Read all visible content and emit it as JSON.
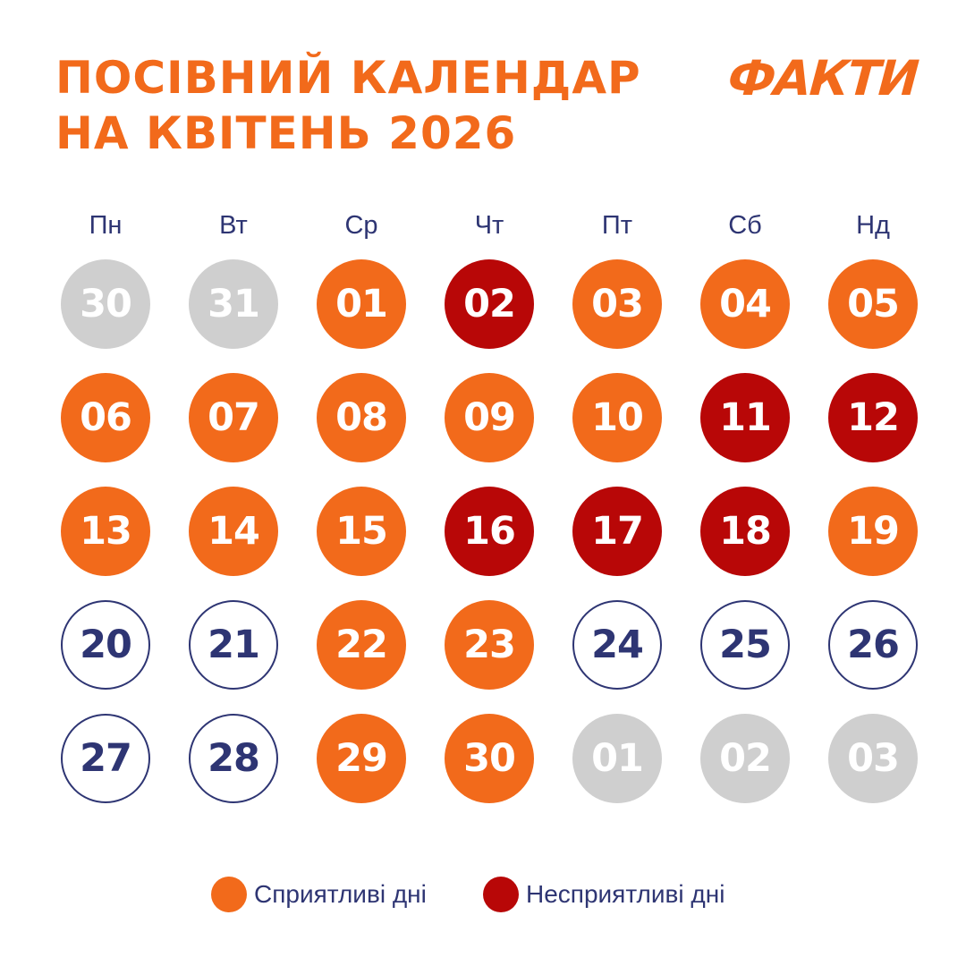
{
  "header": {
    "title_line1": "ПОСІВНИЙ КАЛЕНДАР",
    "title_line2": "НА КВІТЕНЬ 2026",
    "logo": "ФАКТИ"
  },
  "colors": {
    "good": "#F26A1B",
    "bad": "#B80707",
    "neutral_text": "#2E3573",
    "other_month": "#CFCFCF"
  },
  "weekdays": [
    "Пн",
    "Вт",
    "Ср",
    "Чт",
    "Пт",
    "Сб",
    "Нд"
  ],
  "calendar": [
    [
      {
        "label": "30",
        "status": "other"
      },
      {
        "label": "31",
        "status": "other"
      },
      {
        "label": "01",
        "status": "good"
      },
      {
        "label": "02",
        "status": "bad"
      },
      {
        "label": "03",
        "status": "good"
      },
      {
        "label": "04",
        "status": "good"
      },
      {
        "label": "05",
        "status": "good"
      }
    ],
    [
      {
        "label": "06",
        "status": "good"
      },
      {
        "label": "07",
        "status": "good"
      },
      {
        "label": "08",
        "status": "good"
      },
      {
        "label": "09",
        "status": "good"
      },
      {
        "label": "10",
        "status": "good"
      },
      {
        "label": "11",
        "status": "bad"
      },
      {
        "label": "12",
        "status": "bad"
      }
    ],
    [
      {
        "label": "13",
        "status": "good"
      },
      {
        "label": "14",
        "status": "good"
      },
      {
        "label": "15",
        "status": "good"
      },
      {
        "label": "16",
        "status": "bad"
      },
      {
        "label": "17",
        "status": "bad"
      },
      {
        "label": "18",
        "status": "bad"
      },
      {
        "label": "19",
        "status": "good"
      }
    ],
    [
      {
        "label": "20",
        "status": "neutral"
      },
      {
        "label": "21",
        "status": "neutral"
      },
      {
        "label": "22",
        "status": "good"
      },
      {
        "label": "23",
        "status": "good"
      },
      {
        "label": "24",
        "status": "neutral"
      },
      {
        "label": "25",
        "status": "neutral"
      },
      {
        "label": "26",
        "status": "neutral"
      }
    ],
    [
      {
        "label": "27",
        "status": "neutral"
      },
      {
        "label": "28",
        "status": "neutral"
      },
      {
        "label": "29",
        "status": "good"
      },
      {
        "label": "30",
        "status": "good"
      },
      {
        "label": "01",
        "status": "other"
      },
      {
        "label": "02",
        "status": "other"
      },
      {
        "label": "03",
        "status": "other"
      }
    ]
  ],
  "legend": {
    "good_label": "Сприятливі дні",
    "bad_label": "Несприятливі дні"
  }
}
